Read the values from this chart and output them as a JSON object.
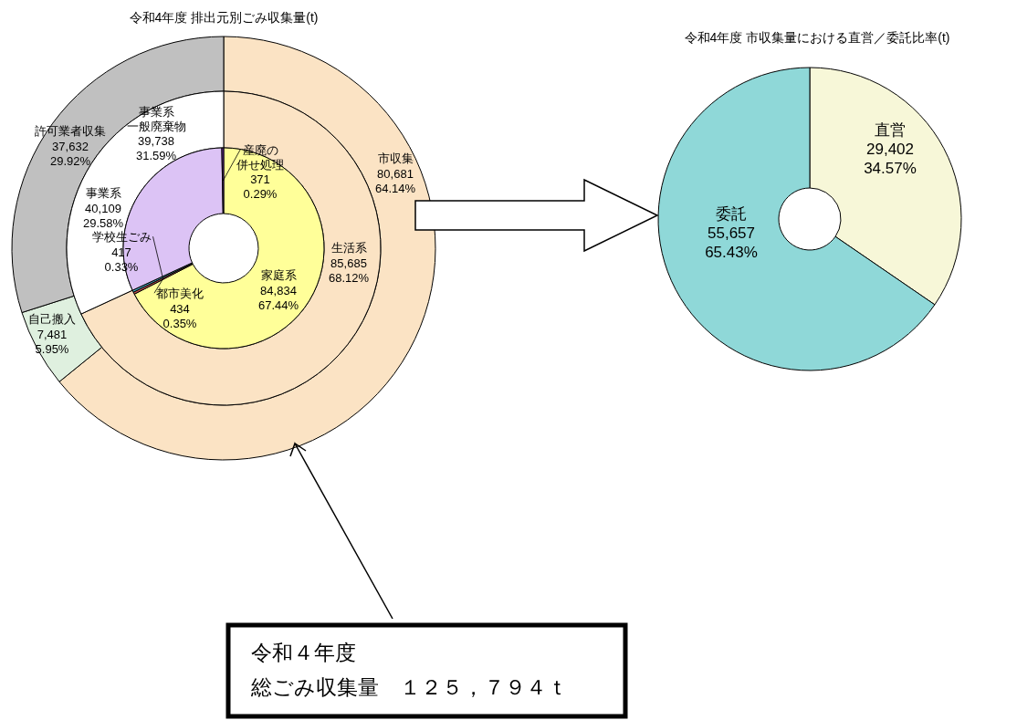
{
  "chart_data": [
    {
      "type": "donut",
      "title": "令和4年度 排出元別ごみ収集量(t)",
      "categories": [
        "市収集",
        "自己搬入",
        "許可業者収集"
      ],
      "values": [
        80681,
        7481,
        37632
      ],
      "colors": [
        "#fbe3c4",
        "#dff0df",
        "#c0c0c0"
      ],
      "value_labels": [
        "80,681\n64.14%",
        "7,481\n5.95%",
        "37,632\n29.92%"
      ],
      "annotations": [
        "令和４年度総ごみ収集量　１２５，７９４ｔ"
      ]
    },
    {
      "type": "donut",
      "categories": [
        "生活系",
        "事業系"
      ],
      "values": [
        85685,
        40109
      ],
      "colors": [
        "#fbe3c4",
        "#ffffff"
      ],
      "value_labels": [
        "85,685\n68.12%",
        "40,109\n29.58%"
      ]
    },
    {
      "type": "donut",
      "categories": [
        "家庭系",
        "都市美化",
        "学校生ごみ",
        "事業系一般廃棄物",
        "産廃の併せ処理"
      ],
      "values": [
        84834,
        434,
        417,
        39738,
        371
      ],
      "colors": [
        "#ffff99",
        "#c0504d",
        "#4bacc6",
        "#dcc3f5",
        "#7030a0"
      ],
      "value_labels": [
        "84,834\n67.44%",
        "434\n0.35%",
        "417\n0.33%",
        "39,738\n31.59%",
        "371\n0.29%"
      ]
    },
    {
      "type": "donut",
      "title": "令和4年度 市収集量における直営／委託比率(t)",
      "categories": [
        "直営",
        "委託"
      ],
      "values": [
        29402,
        55657
      ],
      "colors": [
        "#f7f7d8",
        "#8fd8d8"
      ],
      "value_labels": [
        "29,402\n34.57%",
        "55,657\n65.43%"
      ]
    }
  ]
}
